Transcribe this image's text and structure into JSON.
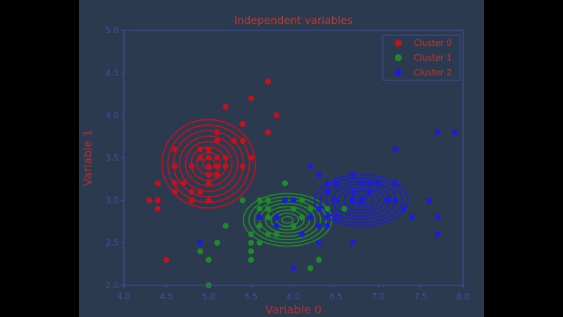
{
  "chart_data": {
    "type": "scatter",
    "title": "Independent variables",
    "xlabel": "Variable 0",
    "ylabel": "Variable 1",
    "xlim": [
      4.0,
      8.0
    ],
    "ylim": [
      2.0,
      5.0
    ],
    "xticks": [
      "4.0",
      "4.5",
      "5.0",
      "5.5",
      "6.0",
      "6.5",
      "7.0",
      "7.5",
      "8.0"
    ],
    "yticks": [
      "2.0",
      "2.5",
      "3.0",
      "3.5",
      "4.0",
      "4.5",
      "5.0"
    ],
    "grid": false,
    "legend_position": "top-right",
    "colors": {
      "figure_bg": "#2c3a4f",
      "title": "#c0392b",
      "axis_label": "#b03030",
      "ticks": "#3d4f9e",
      "frame": "#3d4f9e"
    },
    "series": [
      {
        "name": "Cluster 0",
        "color": "#c0121f",
        "points": [
          [
            5.7,
            4.4
          ],
          [
            5.5,
            4.2
          ],
          [
            5.2,
            4.1
          ],
          [
            5.4,
            3.9
          ],
          [
            5.8,
            4.0
          ],
          [
            5.1,
            3.8
          ],
          [
            5.3,
            3.7
          ],
          [
            5.0,
            3.6
          ],
          [
            4.9,
            3.5
          ],
          [
            5.0,
            3.4
          ],
          [
            5.4,
            3.4
          ],
          [
            5.1,
            3.5
          ],
          [
            5.2,
            3.5
          ],
          [
            4.8,
            3.4
          ],
          [
            4.6,
            3.4
          ],
          [
            4.6,
            3.6
          ],
          [
            5.1,
            3.3
          ],
          [
            5.5,
            3.5
          ],
          [
            5.0,
            3.3
          ],
          [
            4.4,
            3.2
          ],
          [
            4.7,
            3.2
          ],
          [
            4.6,
            3.1
          ],
          [
            5.0,
            3.0
          ],
          [
            4.4,
            3.0
          ],
          [
            4.3,
            3.0
          ],
          [
            4.4,
            2.9
          ],
          [
            4.5,
            2.3
          ],
          [
            4.8,
            3.0
          ],
          [
            4.9,
            3.1
          ],
          [
            5.1,
            3.8
          ],
          [
            5.0,
            3.5
          ],
          [
            5.2,
            3.4
          ],
          [
            5.4,
            3.7
          ],
          [
            4.8,
            3.1
          ],
          [
            5.0,
            3.2
          ],
          [
            5.5,
            3.5
          ],
          [
            4.9,
            3.6
          ],
          [
            5.1,
            3.7
          ],
          [
            5.7,
            3.8
          ],
          [
            5.4,
            3.9
          ],
          [
            4.6,
            3.2
          ],
          [
            5.3,
            3.7
          ],
          [
            5.1,
            3.4
          ],
          [
            4.8,
            3.0
          ]
        ],
        "ellipse": {
          "center": [
            5.0,
            3.43
          ],
          "semi_axes": [
            0.55,
            0.52
          ]
        }
      },
      {
        "name": "Cluster 1",
        "color": "#1e8a2c",
        "points": [
          [
            5.0,
            2.0
          ],
          [
            4.9,
            2.4
          ],
          [
            5.0,
            2.3
          ],
          [
            5.6,
            2.9
          ],
          [
            6.0,
            2.2
          ],
          [
            6.2,
            2.2
          ],
          [
            6.3,
            2.3
          ],
          [
            5.5,
            2.3
          ],
          [
            5.5,
            2.4
          ],
          [
            5.5,
            2.5
          ],
          [
            5.8,
            2.7
          ],
          [
            5.7,
            2.8
          ],
          [
            5.6,
            3.0
          ],
          [
            5.9,
            3.0
          ],
          [
            5.4,
            3.0
          ],
          [
            6.1,
            2.8
          ],
          [
            6.4,
            2.9
          ],
          [
            6.6,
            2.9
          ],
          [
            6.0,
            2.9
          ],
          [
            5.6,
            2.5
          ],
          [
            5.8,
            2.6
          ],
          [
            6.0,
            2.7
          ],
          [
            5.2,
            2.7
          ],
          [
            5.5,
            2.6
          ],
          [
            5.7,
            2.6
          ],
          [
            5.1,
            2.5
          ],
          [
            5.6,
            2.7
          ],
          [
            6.3,
            2.5
          ],
          [
            6.1,
            3.0
          ],
          [
            5.9,
            3.2
          ],
          [
            6.4,
            3.2
          ],
          [
            6.7,
            3.1
          ],
          [
            6.9,
            3.1
          ],
          [
            5.7,
            2.9
          ],
          [
            5.8,
            2.7
          ],
          [
            6.2,
            2.9
          ],
          [
            6.1,
            2.8
          ],
          [
            5.0,
            2.3
          ],
          [
            5.7,
            3.0
          ],
          [
            5.5,
            2.4
          ]
        ],
        "ellipse": {
          "center": [
            5.93,
            2.77
          ],
          "semi_axes": [
            0.52,
            0.31
          ]
        }
      },
      {
        "name": "Cluster 2",
        "color": "#1a1fd6",
        "points": [
          [
            7.7,
            3.8
          ],
          [
            7.9,
            3.8
          ],
          [
            7.2,
            3.6
          ],
          [
            7.7,
            2.6
          ],
          [
            7.7,
            2.8
          ],
          [
            7.6,
            3.0
          ],
          [
            7.4,
            2.8
          ],
          [
            7.3,
            2.9
          ],
          [
            7.2,
            3.0
          ],
          [
            7.1,
            3.0
          ],
          [
            7.2,
            3.2
          ],
          [
            6.9,
            3.1
          ],
          [
            6.8,
            3.2
          ],
          [
            6.7,
            3.3
          ],
          [
            6.7,
            3.1
          ],
          [
            6.9,
            3.2
          ],
          [
            6.5,
            3.0
          ],
          [
            6.4,
            3.2
          ],
          [
            6.3,
            3.3
          ],
          [
            6.5,
            3.2
          ],
          [
            6.3,
            2.9
          ],
          [
            6.4,
            2.8
          ],
          [
            6.1,
            2.6
          ],
          [
            6.0,
            2.2
          ],
          [
            6.3,
            2.5
          ],
          [
            6.5,
            2.8
          ],
          [
            6.4,
            2.7
          ],
          [
            6.7,
            2.5
          ],
          [
            6.2,
            2.8
          ],
          [
            6.0,
            3.0
          ],
          [
            5.8,
            2.8
          ],
          [
            5.8,
            2.7
          ],
          [
            5.6,
            2.8
          ],
          [
            4.9,
            2.5
          ],
          [
            6.7,
            3.0
          ],
          [
            7.2,
            3.0
          ],
          [
            6.8,
            3.0
          ],
          [
            7.0,
            3.2
          ],
          [
            6.9,
            3.1
          ],
          [
            6.3,
            2.7
          ],
          [
            6.5,
            3.0
          ],
          [
            6.2,
            3.4
          ],
          [
            5.9,
            3.0
          ],
          [
            6.4,
            3.1
          ],
          [
            7.1,
            3.0
          ]
        ],
        "ellipse": {
          "center": [
            6.8,
            3.0
          ],
          "semi_axes": [
            0.55,
            0.3
          ]
        }
      }
    ]
  }
}
